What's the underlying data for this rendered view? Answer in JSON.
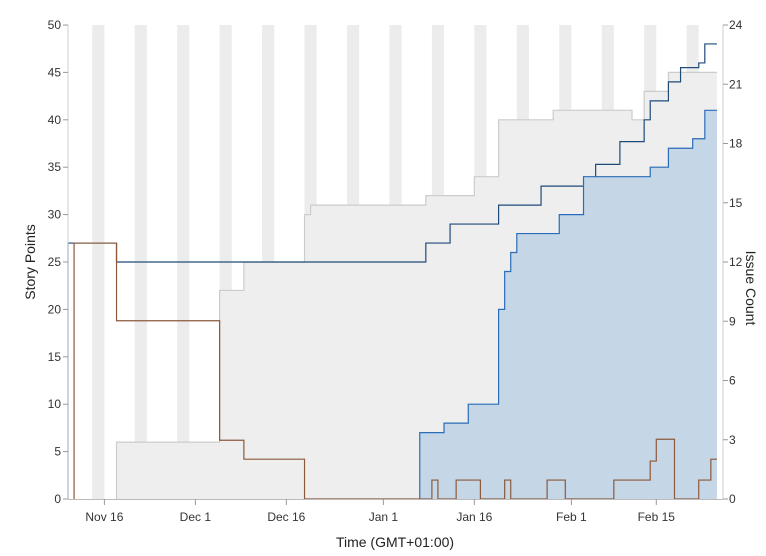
{
  "chart_data": {
    "type": "area",
    "xlabel": "Time (GMT+01:00)",
    "ylabel_left": "Story Points",
    "ylabel_right": "Issue Count",
    "x_range": [
      "2015-11-10",
      "2016-02-26"
    ],
    "ylim_left": [
      0,
      50
    ],
    "ylim_right": [
      0,
      24
    ],
    "x_ticks": [
      {
        "date": "2015-11-16",
        "label": "Nov 16"
      },
      {
        "date": "2015-12-01",
        "label": "Dec 1"
      },
      {
        "date": "2015-12-16",
        "label": "Dec 16"
      },
      {
        "date": "2016-01-01",
        "label": "Jan 1"
      },
      {
        "date": "2016-01-16",
        "label": "Jan 16"
      },
      {
        "date": "2016-02-01",
        "label": "Feb 1"
      },
      {
        "date": "2016-02-15",
        "label": "Feb 15"
      }
    ],
    "y_ticks_left": [
      "0",
      "5",
      "10",
      "15",
      "20",
      "25",
      "30",
      "35",
      "40",
      "45",
      "50"
    ],
    "y_ticks_right": [
      "0",
      "3",
      "6",
      "9",
      "12",
      "15",
      "18",
      "21",
      "24"
    ],
    "weekend_bands": true,
    "series": [
      {
        "color": "#cccccc",
        "fill": "#eeeeee",
        "interpolation": "step",
        "points": [
          [
            "2015-11-18",
            6
          ],
          [
            "2015-12-05",
            22
          ],
          [
            "2015-12-09",
            25
          ],
          [
            "2015-12-19",
            30
          ],
          [
            "2015-12-20",
            31
          ],
          [
            "2016-01-08",
            32
          ],
          [
            "2016-01-16",
            34
          ],
          [
            "2016-01-20",
            40
          ],
          [
            "2016-01-29",
            41
          ],
          [
            "2016-02-11",
            40
          ],
          [
            "2016-02-13",
            43
          ],
          [
            "2016-02-17",
            45
          ],
          [
            "2016-02-25",
            45
          ]
        ]
      },
      {
        "color": "#1f4b7a",
        "fill": "none",
        "interpolation": "step",
        "points": [
          [
            "2015-11-10",
            27
          ],
          [
            "2015-11-18",
            25
          ],
          [
            "2016-01-08",
            27
          ],
          [
            "2016-01-12",
            29
          ],
          [
            "2016-01-20",
            31
          ],
          [
            "2016-01-27",
            33
          ],
          [
            "2016-02-05",
            35.3
          ],
          [
            "2016-02-09",
            37.7
          ],
          [
            "2016-02-13",
            40
          ],
          [
            "2016-02-14",
            42
          ],
          [
            "2016-02-17",
            44
          ],
          [
            "2016-02-19",
            45.5
          ],
          [
            "2016-02-22",
            46
          ],
          [
            "2016-02-23",
            48
          ],
          [
            "2016-02-25",
            48
          ]
        ]
      },
      {
        "color": "#2b6cb8",
        "fill": "#c5d6e7",
        "interpolation": "step",
        "points": [
          [
            "2016-01-07",
            7
          ],
          [
            "2016-01-11",
            8
          ],
          [
            "2016-01-15",
            10
          ],
          [
            "2016-01-20",
            20
          ],
          [
            "2016-01-21",
            24
          ],
          [
            "2016-01-22",
            26
          ],
          [
            "2016-01-23",
            28
          ],
          [
            "2016-01-30",
            30
          ],
          [
            "2016-02-03",
            34
          ],
          [
            "2016-02-14",
            35
          ],
          [
            "2016-02-17",
            37
          ],
          [
            "2016-02-21",
            38
          ],
          [
            "2016-02-23",
            41
          ],
          [
            "2016-02-25",
            41
          ]
        ]
      },
      {
        "color": "#8b5a3c",
        "fill": "none",
        "interpolation": "step",
        "points": [
          [
            "2015-11-11",
            27
          ],
          [
            "2015-11-18",
            18.8
          ],
          [
            "2015-12-05",
            6.2
          ],
          [
            "2015-12-09",
            4.2
          ],
          [
            "2015-12-19",
            0
          ],
          [
            "2016-01-09",
            2
          ],
          [
            "2016-01-10",
            0
          ],
          [
            "2016-01-13",
            2
          ],
          [
            "2016-01-17",
            0
          ],
          [
            "2016-01-21",
            2
          ],
          [
            "2016-01-22",
            0
          ],
          [
            "2016-01-28",
            2
          ],
          [
            "2016-01-31",
            0
          ],
          [
            "2016-02-08",
            2
          ],
          [
            "2016-02-14",
            4
          ],
          [
            "2016-02-15",
            6.3
          ],
          [
            "2016-02-18",
            0
          ],
          [
            "2016-02-22",
            2
          ],
          [
            "2016-02-24",
            4.2
          ],
          [
            "2016-02-25",
            4.2
          ]
        ]
      }
    ]
  }
}
